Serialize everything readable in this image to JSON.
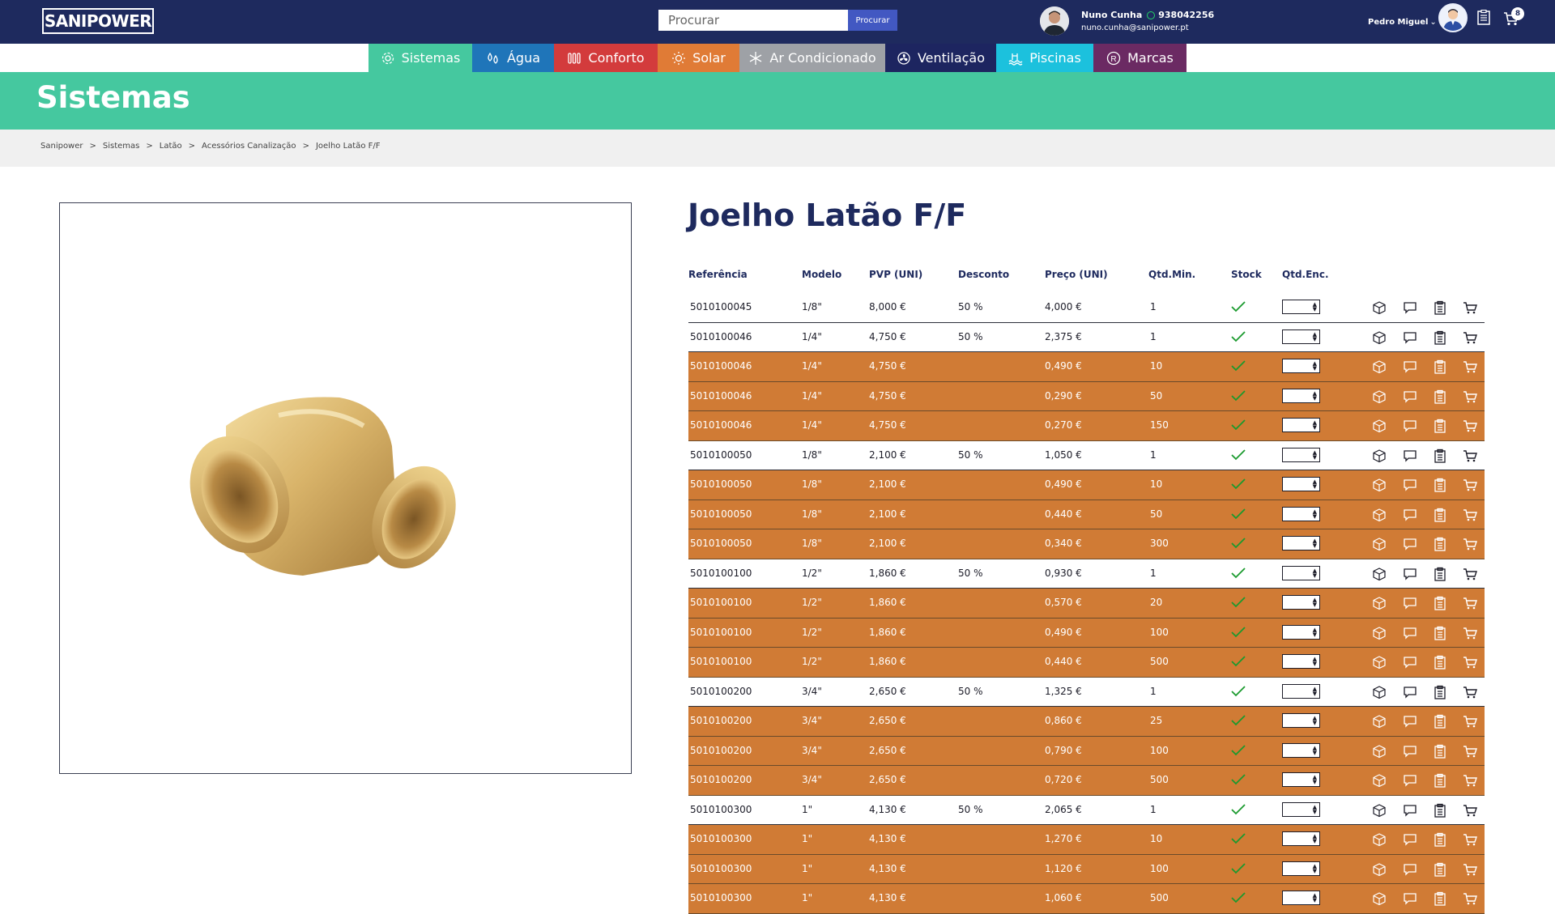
{
  "header": {
    "logo_text": "SANIPOWER",
    "search_placeholder": "Procurar",
    "search_button": "Procurar",
    "contact_name": "Nuno Cunha",
    "contact_phone": "938042256",
    "contact_email": "nuno.cunha@sanipower.pt",
    "user_name": "Pedro Miguel",
    "cart_count": "8"
  },
  "nav": {
    "categories": [
      {
        "label": "Sistemas",
        "color": "#45c89f",
        "icon": "gear-icon"
      },
      {
        "label": "Água",
        "color": "#1f75b9",
        "icon": "water-drops-icon"
      },
      {
        "label": "Conforto",
        "color": "#d33b3c",
        "icon": "radiator-icon"
      },
      {
        "label": "Solar",
        "color": "#e07b36",
        "icon": "sun-icon"
      },
      {
        "label": "Ar Condicionado",
        "color": "#9ea1a6",
        "icon": "snowflake-icon"
      },
      {
        "label": "Ventilação",
        "color": "#1d2560",
        "icon": "fan-icon"
      },
      {
        "label": "Piscinas",
        "color": "#1cc1dd",
        "icon": "pool-icon"
      },
      {
        "label": "Marcas",
        "color": "#6b2a63",
        "icon": "registered-icon"
      }
    ]
  },
  "banner": {
    "title": "Sistemas"
  },
  "breadcrumb": [
    "Sanipower",
    "Sistemas",
    "Latão",
    "Acessórios Canalização",
    "Joelho Latão F/F"
  ],
  "product": {
    "title": "Joelho Latão F/F",
    "image_icon": "brass-elbow-fitting"
  },
  "table": {
    "headers": [
      "Referência",
      "Modelo",
      "PVP (UNI)",
      "Desconto",
      "Preço (UNI)",
      "Qtd.Min.",
      "Stock",
      "Qtd.Enc."
    ],
    "tier_color": "#d07b35",
    "rows": [
      {
        "ref": "5010100045",
        "model": "1/8\"",
        "pvp": "8,000 €",
        "desc": "50 %",
        "price": "4,000 €",
        "min": "1",
        "tier": false
      },
      {
        "ref": "5010100046",
        "model": "1/4\"",
        "pvp": "4,750 €",
        "desc": "50 %",
        "price": "2,375 €",
        "min": "1",
        "tier": false
      },
      {
        "ref": "5010100046",
        "model": "1/4\"",
        "pvp": "4,750 €",
        "desc": "",
        "price": "0,490 €",
        "min": "10",
        "tier": true
      },
      {
        "ref": "5010100046",
        "model": "1/4\"",
        "pvp": "4,750 €",
        "desc": "",
        "price": "0,290 €",
        "min": "50",
        "tier": true
      },
      {
        "ref": "5010100046",
        "model": "1/4\"",
        "pvp": "4,750 €",
        "desc": "",
        "price": "0,270 €",
        "min": "150",
        "tier": true
      },
      {
        "ref": "5010100050",
        "model": "1/8\"",
        "pvp": "2,100 €",
        "desc": "50 %",
        "price": "1,050 €",
        "min": "1",
        "tier": false
      },
      {
        "ref": "5010100050",
        "model": "1/8\"",
        "pvp": "2,100 €",
        "desc": "",
        "price": "0,490 €",
        "min": "10",
        "tier": true
      },
      {
        "ref": "5010100050",
        "model": "1/8\"",
        "pvp": "2,100 €",
        "desc": "",
        "price": "0,440 €",
        "min": "50",
        "tier": true
      },
      {
        "ref": "5010100050",
        "model": "1/8\"",
        "pvp": "2,100 €",
        "desc": "",
        "price": "0,340 €",
        "min": "300",
        "tier": true
      },
      {
        "ref": "5010100100",
        "model": "1/2\"",
        "pvp": "1,860 €",
        "desc": "50 %",
        "price": "0,930 €",
        "min": "1",
        "tier": false
      },
      {
        "ref": "5010100100",
        "model": "1/2\"",
        "pvp": "1,860 €",
        "desc": "",
        "price": "0,570 €",
        "min": "20",
        "tier": true
      },
      {
        "ref": "5010100100",
        "model": "1/2\"",
        "pvp": "1,860 €",
        "desc": "",
        "price": "0,490 €",
        "min": "100",
        "tier": true
      },
      {
        "ref": "5010100100",
        "model": "1/2\"",
        "pvp": "1,860 €",
        "desc": "",
        "price": "0,440 €",
        "min": "500",
        "tier": true
      },
      {
        "ref": "5010100200",
        "model": "3/4\"",
        "pvp": "2,650 €",
        "desc": "50 %",
        "price": "1,325 €",
        "min": "1",
        "tier": false
      },
      {
        "ref": "5010100200",
        "model": "3/4\"",
        "pvp": "2,650 €",
        "desc": "",
        "price": "0,860 €",
        "min": "25",
        "tier": true
      },
      {
        "ref": "5010100200",
        "model": "3/4\"",
        "pvp": "2,650 €",
        "desc": "",
        "price": "0,790 €",
        "min": "100",
        "tier": true
      },
      {
        "ref": "5010100200",
        "model": "3/4\"",
        "pvp": "2,650 €",
        "desc": "",
        "price": "0,720 €",
        "min": "500",
        "tier": true
      },
      {
        "ref": "5010100300",
        "model": "1\"",
        "pvp": "4,130 €",
        "desc": "50 %",
        "price": "2,065 €",
        "min": "1",
        "tier": false
      },
      {
        "ref": "5010100300",
        "model": "1\"",
        "pvp": "4,130 €",
        "desc": "",
        "price": "1,270 €",
        "min": "10",
        "tier": true
      },
      {
        "ref": "5010100300",
        "model": "1\"",
        "pvp": "4,130 €",
        "desc": "",
        "price": "1,120 €",
        "min": "100",
        "tier": true
      },
      {
        "ref": "5010100300",
        "model": "1\"",
        "pvp": "4,130 €",
        "desc": "",
        "price": "1,060 €",
        "min": "500",
        "tier": true
      }
    ]
  }
}
